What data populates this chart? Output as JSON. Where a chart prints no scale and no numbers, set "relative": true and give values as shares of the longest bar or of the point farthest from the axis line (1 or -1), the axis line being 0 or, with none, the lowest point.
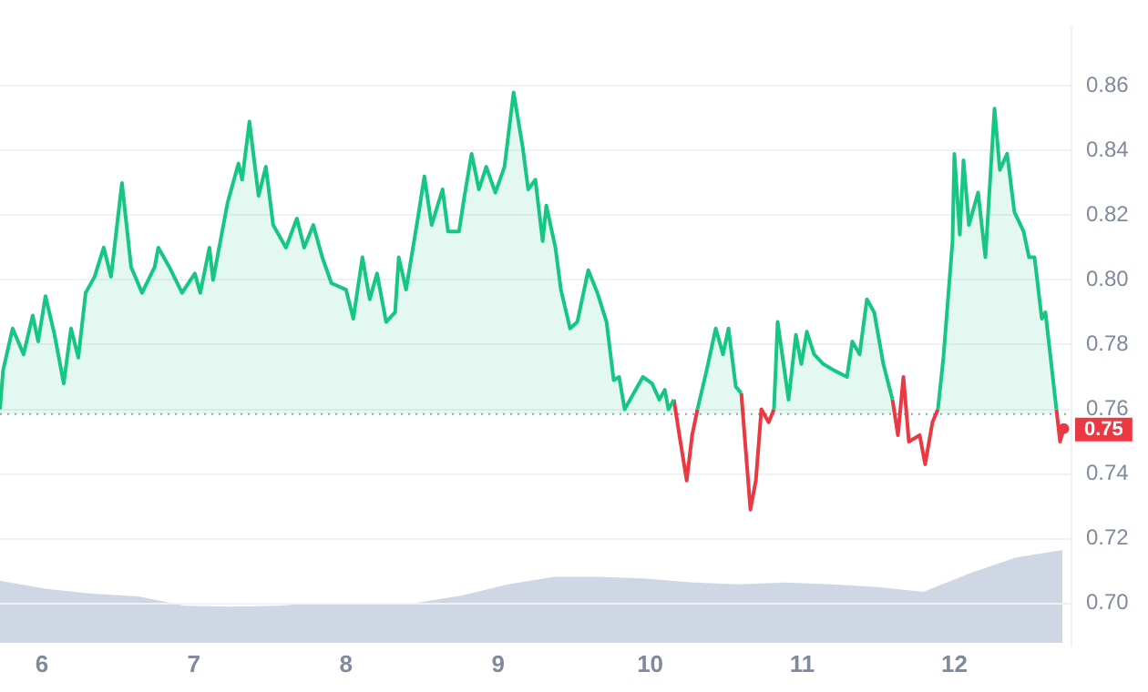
{
  "chart_data": [
    {
      "type": "line",
      "xlim": [
        5.725,
        12.77
      ],
      "xticks": [
        6,
        7,
        8,
        9,
        10,
        11,
        12
      ],
      "ylim": [
        0.687,
        0.878
      ],
      "yticks": [
        {
          "value": 0.7,
          "label": "0.70"
        },
        {
          "value": 0.72,
          "label": "0.72"
        },
        {
          "value": 0.74,
          "label": "0.74"
        },
        {
          "value": 0.76,
          "label": "0.76"
        },
        {
          "value": 0.78,
          "label": "0.78"
        },
        {
          "value": 0.8,
          "label": "0.80"
        },
        {
          "value": 0.82,
          "label": "0.82"
        },
        {
          "value": 0.84,
          "label": "0.84"
        },
        {
          "value": 0.86,
          "label": "0.86"
        }
      ],
      "grid": "y",
      "legend": false,
      "marker": "none",
      "line_style": "solid",
      "ref_lines": [
        {
          "axis": "y",
          "value": 0.7585,
          "color": "#9aa0aa",
          "line_style": "dotted"
        }
      ],
      "annotations": [
        {
          "text": "0.75",
          "x": 12.719,
          "y": 0.754
        }
      ],
      "series": [
        {
          "type": "area",
          "color": "#16c784",
          "x": [
            5.725,
            5.745,
            5.808,
            5.88,
            5.94,
            5.976,
            6.024,
            6.084,
            6.144,
            6.192,
            6.24,
            6.288,
            6.347,
            6.407,
            6.455,
            6.527,
            6.587,
            6.659,
            6.742,
            6.766,
            6.838,
            6.922,
            7.006,
            7.042,
            7.102,
            7.126,
            7.222,
            7.293,
            7.317,
            7.365,
            7.425,
            7.473,
            7.521,
            7.605,
            7.677,
            7.725,
            7.785,
            7.844,
            7.904,
            8.0,
            8.048,
            8.108,
            8.156,
            8.204,
            8.264,
            8.323,
            8.347,
            8.395,
            8.479,
            8.515,
            8.563,
            8.635,
            8.671,
            8.743,
            8.779,
            8.826,
            8.874,
            8.922,
            8.982,
            9.042,
            9.102,
            9.162,
            9.198,
            9.245,
            9.293,
            9.317,
            9.377,
            9.413,
            9.473,
            9.521,
            9.593,
            9.653,
            9.713,
            9.76,
            9.796,
            9.832,
            9.892,
            9.952,
            10.012,
            10.06,
            10.096,
            10.12,
            10.156,
            10.192,
            10.24,
            10.276,
            10.311,
            10.371,
            10.431,
            10.479,
            10.515,
            10.563,
            10.599,
            10.659,
            10.695,
            10.731,
            10.779,
            10.814,
            10.838,
            10.91,
            10.958,
            10.994,
            11.03,
            11.078,
            11.138,
            11.21,
            11.294,
            11.329,
            11.377,
            11.425,
            11.473,
            11.533,
            11.593,
            11.629,
            11.665,
            11.701,
            11.772,
            11.808,
            11.856,
            11.892,
            11.928,
            11.988,
            12.0,
            12.036,
            12.06,
            12.096,
            12.156,
            12.204,
            12.264,
            12.299,
            12.347,
            12.395,
            12.455,
            12.491,
            12.527,
            12.575,
            12.599,
            12.671
          ],
          "values": [
            0.76,
            0.772,
            0.785,
            0.777,
            0.789,
            0.781,
            0.795,
            0.783,
            0.768,
            0.785,
            0.776,
            0.796,
            0.801,
            0.81,
            0.801,
            0.83,
            0.804,
            0.796,
            0.804,
            0.81,
            0.804,
            0.796,
            0.802,
            0.796,
            0.81,
            0.8,
            0.824,
            0.836,
            0.831,
            0.849,
            0.826,
            0.835,
            0.817,
            0.81,
            0.819,
            0.81,
            0.817,
            0.807,
            0.799,
            0.797,
            0.788,
            0.807,
            0.794,
            0.802,
            0.787,
            0.79,
            0.807,
            0.797,
            0.821,
            0.832,
            0.817,
            0.828,
            0.815,
            0.815,
            0.826,
            0.839,
            0.828,
            0.835,
            0.827,
            0.835,
            0.858,
            0.841,
            0.828,
            0.831,
            0.812,
            0.823,
            0.81,
            0.797,
            0.785,
            0.787,
            0.803,
            0.796,
            0.787,
            0.769,
            0.77,
            0.76,
            0.765,
            0.77,
            0.768,
            0.763,
            0.766,
            0.76,
            0.763,
            null,
            null,
            null,
            0.76,
            0.772,
            0.785,
            0.777,
            0.785,
            0.767,
            0.765,
            null,
            null,
            null,
            null,
            0.76,
            0.787,
            0.763,
            0.783,
            0.774,
            0.784,
            0.777,
            0.774,
            0.772,
            0.77,
            0.781,
            0.777,
            0.794,
            0.79,
            0.774,
            0.763,
            null,
            null,
            null,
            null,
            null,
            null,
            0.76,
            0.776,
            0.812,
            0.839,
            0.814,
            0.837,
            0.817,
            0.827,
            0.807,
            0.853,
            0.834,
            0.839,
            0.821,
            0.815,
            0.807,
            0.807,
            0.788,
            0.79,
            0.76
          ]
        },
        {
          "color": "#ea3943",
          "x": [
            10.156,
            10.192,
            10.24,
            10.276,
            10.311,
            10.45,
            10.599,
            10.659,
            10.695,
            10.731,
            10.779,
            10.814,
            11.2,
            11.593,
            11.629,
            11.665,
            11.701,
            11.772,
            11.808,
            11.856,
            11.892,
            12.3,
            12.671,
            12.695,
            12.719
          ],
          "values": [
            0.763,
            0.752,
            0.738,
            0.752,
            0.76,
            null,
            0.765,
            0.729,
            0.738,
            0.76,
            0.756,
            0.76,
            null,
            0.763,
            0.752,
            0.77,
            0.75,
            0.752,
            0.743,
            0.756,
            0.76,
            null,
            0.76,
            0.75,
            0.754
          ]
        }
      ]
    },
    {
      "type": "area",
      "relative": true,
      "categories": [
        null,
        null,
        null,
        null,
        null,
        null,
        null,
        null,
        null,
        null,
        null,
        null,
        null,
        null,
        null,
        null,
        null,
        null,
        null,
        null,
        null,
        null,
        null,
        null
      ],
      "series": [
        {
          "color": "#cfd6e4",
          "values": [
            0.67,
            0.58,
            0.53,
            0.5,
            0.4,
            0.39,
            0.4,
            0.43,
            0.43,
            0.43,
            0.51,
            0.63,
            0.71,
            0.71,
            0.69,
            0.65,
            0.63,
            0.65,
            0.63,
            0.6,
            0.55,
            0.75,
            0.92,
            1
          ]
        }
      ]
    }
  ]
}
